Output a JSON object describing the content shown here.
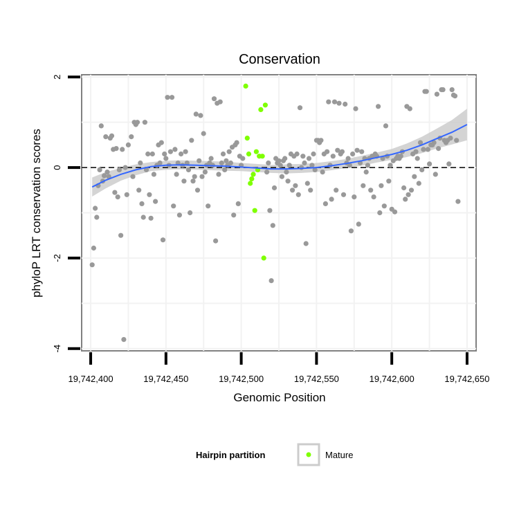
{
  "chart_data": {
    "type": "scatter",
    "title": "Conservation",
    "xlabel": "Genomic Position",
    "ylabel": "phyloP LRT conservation scores",
    "xlim": [
      19742394,
      19742656
    ],
    "ylim": [
      -4.05,
      2.05
    ],
    "x_ticks": [
      19742400,
      19742450,
      19742500,
      19742550,
      19742600,
      19742650
    ],
    "x_tick_labels": [
      "19,742,400",
      "19,742,450",
      "19,742,500",
      "19,742,550",
      "19,742,600",
      "19,742,650"
    ],
    "y_ticks": [
      -4,
      -2,
      0,
      2
    ],
    "y_tick_labels": [
      "-4",
      "-2",
      "0",
      "2"
    ],
    "reference_line_y": 0,
    "grid": true,
    "legend": {
      "title": "Hairpin partition",
      "position": "bottom",
      "entries": [
        {
          "label": "Mature",
          "color": "#7fff00"
        }
      ]
    },
    "colors": {
      "points": "#999999",
      "mature": "#7fff00",
      "smooth_line": "#3366ff",
      "confidence_band": "#cccccc"
    },
    "series": [
      {
        "name": "",
        "color": "#999999",
        "points": [
          [
            19742401,
            -2.15
          ],
          [
            19742402,
            -1.78
          ],
          [
            19742403,
            -0.9
          ],
          [
            19742404,
            -1.1
          ],
          [
            19742405,
            -0.4
          ],
          [
            19742406,
            -0.05
          ],
          [
            19742407,
            0.92
          ],
          [
            19742408,
            -0.3
          ],
          [
            19742409,
            -0.18
          ],
          [
            19742410,
            0.68
          ],
          [
            19742411,
            -0.1
          ],
          [
            19742412,
            -0.2
          ],
          [
            19742413,
            0.65
          ],
          [
            19742414,
            0.7
          ],
          [
            19742415,
            0.4
          ],
          [
            19742416,
            -0.55
          ],
          [
            19742417,
            0.42
          ],
          [
            19742418,
            -0.65
          ],
          [
            19742419,
            -0.05
          ],
          [
            19742420,
            -1.5
          ],
          [
            19742421,
            0.4
          ],
          [
            19742422,
            -3.8
          ],
          [
            19742423,
            0.0
          ],
          [
            19742424,
            -0.6
          ],
          [
            19742425,
            0.5
          ],
          [
            19742427,
            0.68
          ],
          [
            19742428,
            -0.2
          ],
          [
            19742429,
            1.0
          ],
          [
            19742430,
            0.95
          ],
          [
            19742431,
            1.0
          ],
          [
            19742432,
            -0.5
          ],
          [
            19742433,
            0.1
          ],
          [
            19742434,
            -0.8
          ],
          [
            19742435,
            -1.1
          ],
          [
            19742436,
            1.0
          ],
          [
            19742437,
            -0.05
          ],
          [
            19742438,
            0.3
          ],
          [
            19742439,
            -0.6
          ],
          [
            19742440,
            -1.12
          ],
          [
            19742441,
            0.3
          ],
          [
            19742442,
            -0.15
          ],
          [
            19742443,
            -0.75
          ],
          [
            19742444,
            0.05
          ],
          [
            19742445,
            0.5
          ],
          [
            19742446,
            0.1
          ],
          [
            19742447,
            0.55
          ],
          [
            19742448,
            -1.6
          ],
          [
            19742449,
            0.3
          ],
          [
            19742450,
            0.2
          ],
          [
            19742451,
            1.55
          ],
          [
            19742452,
            0.05
          ],
          [
            19742453,
            0.35
          ],
          [
            19742454,
            1.55
          ],
          [
            19742455,
            -0.85
          ],
          [
            19742456,
            0.4
          ],
          [
            19742457,
            -0.15
          ],
          [
            19742458,
            0.1
          ],
          [
            19742459,
            -1.05
          ],
          [
            19742460,
            0.3
          ],
          [
            19742461,
            0.05
          ],
          [
            19742462,
            -0.3
          ],
          [
            19742463,
            0.35
          ],
          [
            19742464,
            0.1
          ],
          [
            19742465,
            -0.05
          ],
          [
            19742466,
            -1.0
          ],
          [
            19742467,
            0.6
          ],
          [
            19742468,
            -0.3
          ],
          [
            19742469,
            -0.2
          ],
          [
            19742470,
            1.18
          ],
          [
            19742471,
            -0.5
          ],
          [
            19742472,
            0.15
          ],
          [
            19742473,
            1.15
          ],
          [
            19742474,
            -0.2
          ],
          [
            19742475,
            0.75
          ],
          [
            19742476,
            -0.1
          ],
          [
            19742477,
            0.05
          ],
          [
            19742478,
            -0.85
          ],
          [
            19742479,
            0.1
          ],
          [
            19742480,
            0.2
          ],
          [
            19742481,
            0.05
          ],
          [
            19742482,
            1.52
          ],
          [
            19742483,
            -1.62
          ],
          [
            19742484,
            1.42
          ],
          [
            19742485,
            -0.15
          ],
          [
            19742486,
            1.45
          ],
          [
            19742487,
            0.1
          ],
          [
            19742488,
            0.3
          ],
          [
            19742489,
            -0.05
          ],
          [
            19742490,
            0.15
          ],
          [
            19742491,
            0.05
          ],
          [
            19742492,
            0.35
          ],
          [
            19742493,
            0.1
          ],
          [
            19742494,
            0.45
          ],
          [
            19742495,
            -1.05
          ],
          [
            19742496,
            0.5
          ],
          [
            19742497,
            0.55
          ],
          [
            19742498,
            -0.8
          ],
          [
            19742499,
            0.25
          ],
          [
            19742500,
            0.05
          ],
          [
            19742501,
            0.2
          ],
          [
            19742517,
            -0.1
          ],
          [
            19742518,
            0.1
          ],
          [
            19742519,
            -0.95
          ],
          [
            19742520,
            -2.5
          ],
          [
            19742521,
            -1.28
          ],
          [
            19742522,
            -0.45
          ],
          [
            19742523,
            0.2
          ],
          [
            19742524,
            0.1
          ],
          [
            19742525,
            0.15
          ],
          [
            19742526,
            0.05
          ],
          [
            19742527,
            -0.2
          ],
          [
            19742528,
            0.15
          ],
          [
            19742529,
            0.2
          ],
          [
            19742530,
            -0.1
          ],
          [
            19742531,
            -0.3
          ],
          [
            19742532,
            0.05
          ],
          [
            19742533,
            0.3
          ],
          [
            19742534,
            -0.5
          ],
          [
            19742535,
            0.25
          ],
          [
            19742536,
            -0.4
          ],
          [
            19742537,
            0.3
          ],
          [
            19742538,
            -0.6
          ],
          [
            19742539,
            1.32
          ],
          [
            19742540,
            0.0
          ],
          [
            19742541,
            0.25
          ],
          [
            19742542,
            0.1
          ],
          [
            19742543,
            -1.68
          ],
          [
            19742544,
            -0.35
          ],
          [
            19742545,
            0.2
          ],
          [
            19742546,
            -0.5
          ],
          [
            19742547,
            0.05
          ],
          [
            19742548,
            0.3
          ],
          [
            19742549,
            -0.05
          ],
          [
            19742550,
            0.6
          ],
          [
            19742551,
            0.6
          ],
          [
            19742552,
            0.55
          ],
          [
            19742553,
            0.6
          ],
          [
            19742554,
            -0.1
          ],
          [
            19742555,
            0.3
          ],
          [
            19742556,
            -0.8
          ],
          [
            19742557,
            0.35
          ],
          [
            19742558,
            1.45
          ],
          [
            19742559,
            0.05
          ],
          [
            19742560,
            -0.7
          ],
          [
            19742561,
            0.25
          ],
          [
            19742562,
            1.45
          ],
          [
            19742563,
            -0.5
          ],
          [
            19742564,
            0.38
          ],
          [
            19742565,
            1.42
          ],
          [
            19742566,
            0.3
          ],
          [
            19742567,
            0.35
          ],
          [
            19742568,
            -0.6
          ],
          [
            19742569,
            1.4
          ],
          [
            19742570,
            0.1
          ],
          [
            19742571,
            0.2
          ],
          [
            19742572,
            0.05
          ],
          [
            19742573,
            -1.4
          ],
          [
            19742574,
            0.3
          ],
          [
            19742575,
            -0.65
          ],
          [
            19742576,
            1.3
          ],
          [
            19742577,
            0.38
          ],
          [
            19742578,
            -1.25
          ],
          [
            19742579,
            0.1
          ],
          [
            19742580,
            0.35
          ],
          [
            19742581,
            -0.4
          ],
          [
            19742582,
            0.2
          ],
          [
            19742583,
            -0.1
          ],
          [
            19742584,
            0.05
          ],
          [
            19742585,
            0.2
          ],
          [
            19742586,
            -0.5
          ],
          [
            19742587,
            0.25
          ],
          [
            19742588,
            -0.65
          ],
          [
            19742589,
            0.3
          ],
          [
            19742590,
            0.25
          ],
          [
            19742591,
            1.35
          ],
          [
            19742592,
            -1.0
          ],
          [
            19742593,
            -0.4
          ],
          [
            19742594,
            0.2
          ],
          [
            19742595,
            -0.85
          ],
          [
            19742596,
            0.92
          ],
          [
            19742597,
            0.25
          ],
          [
            19742598,
            -0.3
          ],
          [
            19742599,
            0.05
          ],
          [
            19742600,
            -0.92
          ],
          [
            19742601,
            0.15
          ],
          [
            19742602,
            -0.98
          ],
          [
            19742603,
            0.2
          ],
          [
            19742604,
            0.25
          ],
          [
            19742605,
            0.2
          ],
          [
            19742606,
            0.25
          ],
          [
            19742607,
            0.35
          ],
          [
            19742608,
            -0.45
          ],
          [
            19742609,
            -0.7
          ],
          [
            19742610,
            1.35
          ],
          [
            19742611,
            -0.6
          ],
          [
            19742612,
            1.3
          ],
          [
            19742613,
            -0.5
          ],
          [
            19742614,
            0.3
          ],
          [
            19742615,
            -0.2
          ],
          [
            19742616,
            0.35
          ],
          [
            19742617,
            0.2
          ],
          [
            19742618,
            -0.35
          ],
          [
            19742619,
            0.55
          ],
          [
            19742620,
            -0.05
          ],
          [
            19742621,
            0.4
          ],
          [
            19742622,
            1.68
          ],
          [
            19742623,
            1.68
          ],
          [
            19742624,
            0.4
          ],
          [
            19742625,
            0.08
          ],
          [
            19742626,
            0.5
          ],
          [
            19742627,
            0.5
          ],
          [
            19742628,
            0.55
          ],
          [
            19742629,
            -0.15
          ],
          [
            19742630,
            1.62
          ],
          [
            19742631,
            0.42
          ],
          [
            19742632,
            0.65
          ],
          [
            19742633,
            1.72
          ],
          [
            19742634,
            1.72
          ],
          [
            19742635,
            0.6
          ],
          [
            19742636,
            0.55
          ],
          [
            19742637,
            0.6
          ],
          [
            19742638,
            0.08
          ],
          [
            19742639,
            0.65
          ],
          [
            19742640,
            1.72
          ],
          [
            19742641,
            1.6
          ],
          [
            19742642,
            1.58
          ],
          [
            19742643,
            0.6
          ],
          [
            19742644,
            -0.75
          ]
        ]
      },
      {
        "name": "Mature",
        "color": "#7fff00",
        "points": [
          [
            19742503,
            1.8
          ],
          [
            19742504,
            0.65
          ],
          [
            19742505,
            0.3
          ],
          [
            19742506,
            -0.35
          ],
          [
            19742507,
            -0.25
          ],
          [
            19742508,
            -0.15
          ],
          [
            19742509,
            -0.95
          ],
          [
            19742510,
            0.35
          ],
          [
            19742511,
            -0.05
          ],
          [
            19742512,
            0.25
          ],
          [
            19742513,
            1.28
          ],
          [
            19742514,
            0.25
          ],
          [
            19742515,
            -2.0
          ],
          [
            19742516,
            1.38
          ]
        ]
      }
    ],
    "smooth_line": [
      [
        19742401,
        -0.43
      ],
      [
        19742410,
        -0.28
      ],
      [
        19742420,
        -0.15
      ],
      [
        19742430,
        -0.05
      ],
      [
        19742440,
        0.02
      ],
      [
        19742450,
        0.05
      ],
      [
        19742460,
        0.06
      ],
      [
        19742470,
        0.05
      ],
      [
        19742480,
        0.04
      ],
      [
        19742490,
        0.03
      ],
      [
        19742500,
        0.01
      ],
      [
        19742510,
        -0.01
      ],
      [
        19742520,
        -0.03
      ],
      [
        19742530,
        -0.03
      ],
      [
        19742540,
        -0.02
      ],
      [
        19742550,
        0.0
      ],
      [
        19742560,
        0.04
      ],
      [
        19742570,
        0.09
      ],
      [
        19742580,
        0.15
      ],
      [
        19742590,
        0.22
      ],
      [
        19742600,
        0.29
      ],
      [
        19742610,
        0.38
      ],
      [
        19742620,
        0.5
      ],
      [
        19742630,
        0.64
      ],
      [
        19742640,
        0.78
      ],
      [
        19742650,
        0.95
      ]
    ],
    "confidence_band": {
      "upper": [
        -0.22,
        -0.1,
        -0.01,
        0.07,
        0.12,
        0.15,
        0.16,
        0.15,
        0.14,
        0.13,
        0.1,
        0.08,
        0.06,
        0.07,
        0.08,
        0.1,
        0.14,
        0.19,
        0.26,
        0.33,
        0.41,
        0.53,
        0.68,
        0.86,
        1.05,
        1.3
      ],
      "lower": [
        -0.64,
        -0.46,
        -0.29,
        -0.17,
        -0.08,
        -0.05,
        -0.04,
        -0.05,
        -0.06,
        -0.07,
        -0.08,
        -0.1,
        -0.12,
        -0.13,
        -0.12,
        -0.1,
        -0.06,
        -0.01,
        0.04,
        0.11,
        0.17,
        0.23,
        0.32,
        0.42,
        0.51,
        0.6
      ]
    }
  }
}
